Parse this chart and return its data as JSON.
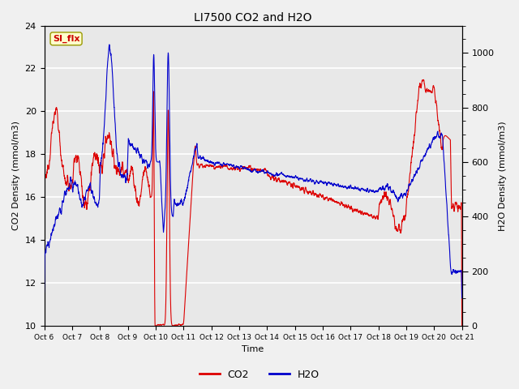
{
  "title": "LI7500 CO2 and H2O",
  "xlabel": "Time",
  "ylabel_left": "CO2 Density (mmol/m3)",
  "ylabel_right": "H2O Density (mmol/m3)",
  "annotation_text": "SI_flx",
  "annotation_color": "#cc0000",
  "annotation_bg": "#ffffcc",
  "annotation_border": "#999900",
  "left_ylim": [
    10,
    24
  ],
  "right_ylim": [
    0,
    1100
  ],
  "co2_color": "#dd0000",
  "h2o_color": "#0000cc",
  "fig_bg": "#f0f0f0",
  "plot_bg": "#e8e8e8",
  "x_tick_labels": [
    "Oct 6",
    "Oct 7",
    "Oct 8",
    "Oct 9",
    "Oct 10",
    "Oct 11",
    "Oct 12",
    "Oct 13",
    "Oct 14",
    "Oct 15",
    "Oct 16",
    "Oct 17",
    "Oct 18",
    "Oct 19",
    "Oct 20",
    "Oct 21"
  ],
  "grid_color": "#d0d0d0",
  "legend_co2": "CO2",
  "legend_h2o": "H2O",
  "linewidth": 0.8
}
